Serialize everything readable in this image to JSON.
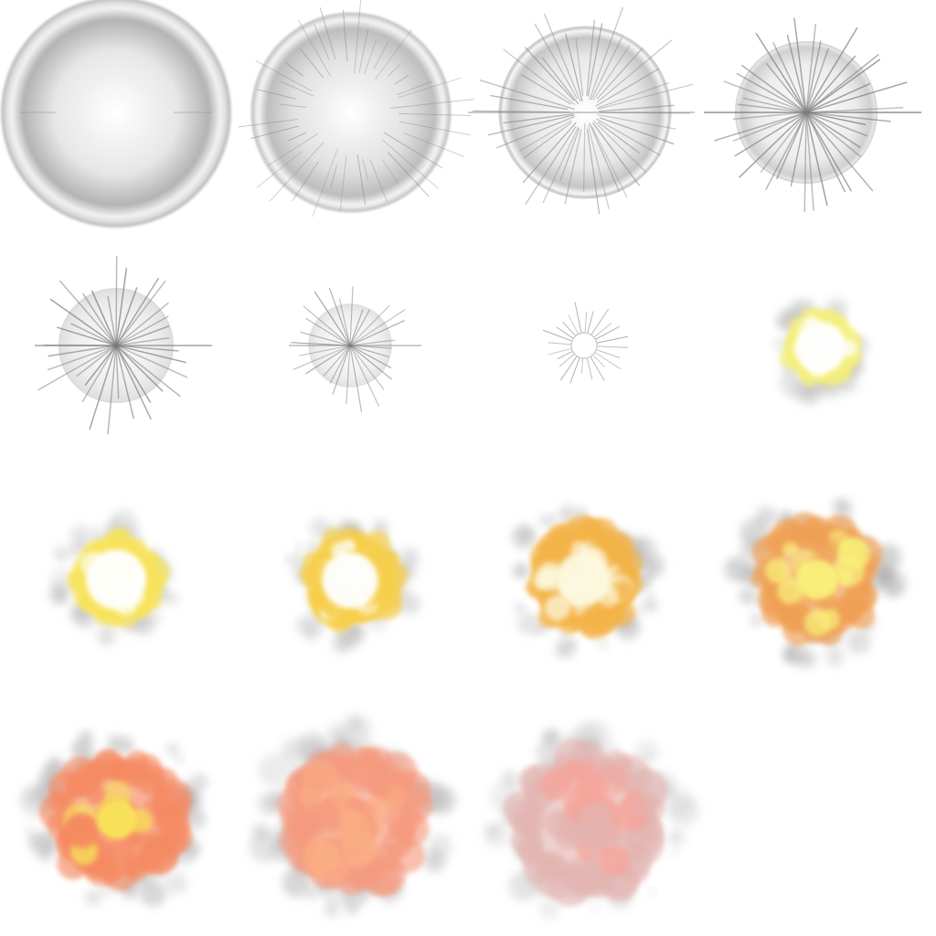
{
  "sprite_sheet": {
    "columns": 4,
    "rows": 4,
    "frame_count": 15,
    "frames": [
      {
        "index": 1,
        "kind": "shockwave-ring",
        "ring_intensity": 1.0,
        "spike_intensity": 0.15
      },
      {
        "index": 2,
        "kind": "shockwave-ring",
        "ring_intensity": 0.8,
        "spike_intensity": 0.5
      },
      {
        "index": 3,
        "kind": "shockwave-ring",
        "ring_intensity": 0.6,
        "spike_intensity": 0.8
      },
      {
        "index": 4,
        "kind": "flash-star",
        "ring_intensity": 0.45,
        "spike_intensity": 1.0
      },
      {
        "index": 5,
        "kind": "flash-star",
        "ring_intensity": 0.35,
        "spike_intensity": 0.9
      },
      {
        "index": 6,
        "kind": "flash-star",
        "ring_intensity": 0.25,
        "spike_intensity": 0.7
      },
      {
        "index": 7,
        "kind": "flash-star",
        "ring_intensity": 0.0,
        "spike_intensity": 0.5
      },
      {
        "index": 8,
        "kind": "fireball",
        "core_color": "#ffffff",
        "rim_color": "#f4ef7a",
        "smoke_color": "#bcbcbc"
      },
      {
        "index": 9,
        "kind": "fireball",
        "core_color": "#ffffff",
        "rim_color": "#f7e35b",
        "smoke_color": "#b8b8b8"
      },
      {
        "index": 10,
        "kind": "fireball",
        "core_color": "#ffffff",
        "rim_color": "#f6cf4c",
        "smoke_color": "#b4b4b4"
      },
      {
        "index": 11,
        "kind": "fireball",
        "core_color": "#fdf9e0",
        "rim_color": "#f3b347",
        "smoke_color": "#b0b0b0"
      },
      {
        "index": 12,
        "kind": "fireball",
        "core_color": "#f9f07a",
        "rim_color": "#f0a055",
        "smoke_color": "#a8a8a8"
      },
      {
        "index": 13,
        "kind": "smoke",
        "core_color": "#f8e25a",
        "rim_color": "#f58a62",
        "smoke_color": "#b0b0b0"
      },
      {
        "index": 14,
        "kind": "smoke",
        "core_color": "#fbae84",
        "rim_color": "#f59a7e",
        "smoke_color": "#b4b4b4"
      },
      {
        "index": 15,
        "kind": "smoke",
        "core_color": "#f6a49a",
        "rim_color": "#e3b4b0",
        "smoke_color": "#c6c6c6"
      }
    ]
  }
}
